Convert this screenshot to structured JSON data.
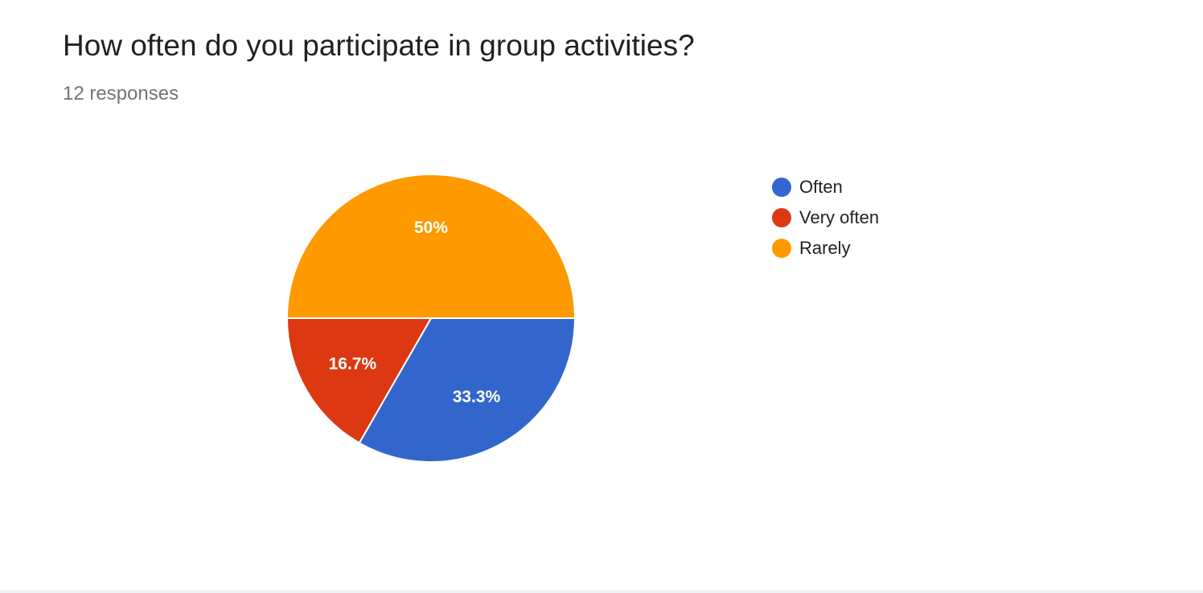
{
  "header": {
    "title": "How often do you participate in group activities?",
    "responses": "12 responses"
  },
  "chart_data": {
    "type": "pie",
    "categories": [
      "Often",
      "Very often",
      "Rarely"
    ],
    "values": [
      33.3,
      16.7,
      50
    ],
    "labels": [
      "33.3%",
      "16.7%",
      "50%"
    ],
    "colors": [
      "#3366cc",
      "#dc3912",
      "#ff9900"
    ],
    "legend_position": "right"
  }
}
